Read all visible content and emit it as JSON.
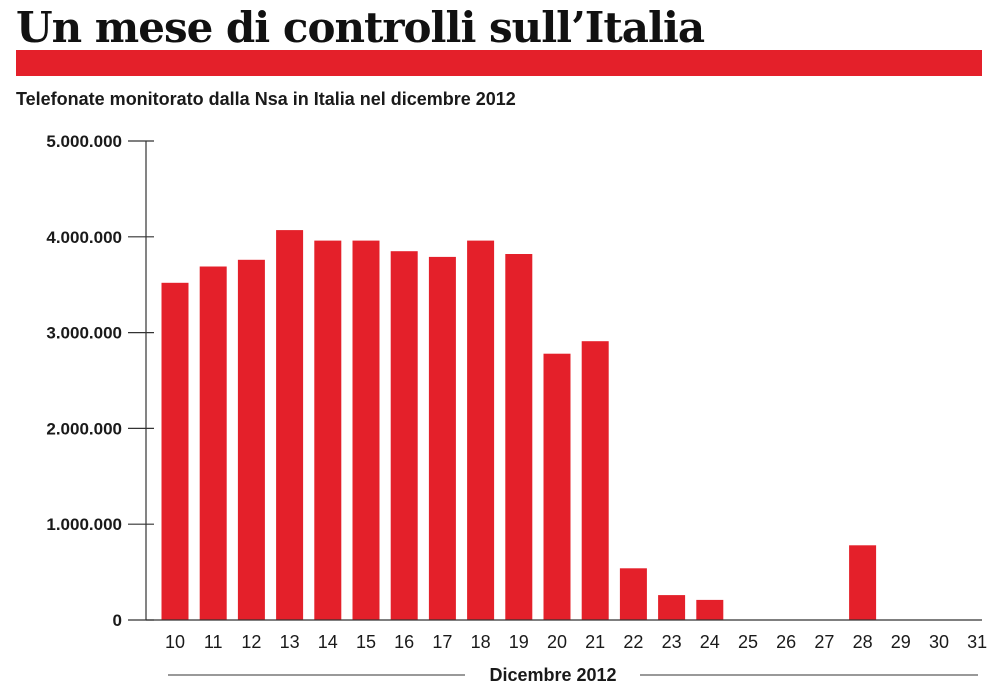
{
  "header": {
    "title": "Un mese di controlli sull’Italia",
    "subtitle": "Telefonate monitorato dalla Nsa in Italia nel dicembre 2012"
  },
  "colors": {
    "accent": "#e4202a",
    "text": "#1a1a1a",
    "axis": "#333333"
  },
  "chart_data": {
    "type": "bar",
    "title": "Un mese di controlli sull’Italia",
    "subtitle": "Telefonate monitorato dalla Nsa in Italia nel dicembre 2012",
    "xlabel": "Dicembre 2012",
    "ylabel": "",
    "categories": [
      "10",
      "11",
      "12",
      "13",
      "14",
      "15",
      "16",
      "17",
      "18",
      "19",
      "20",
      "21",
      "22",
      "23",
      "24",
      "25",
      "26",
      "27",
      "28",
      "29",
      "30",
      "31"
    ],
    "values": [
      3520000,
      3690000,
      3760000,
      4070000,
      3960000,
      3960000,
      3850000,
      3790000,
      3960000,
      3820000,
      2780000,
      2910000,
      540000,
      260000,
      210000,
      0,
      0,
      0,
      780000,
      0,
      0,
      0
    ],
    "ylim": [
      0,
      5000000
    ],
    "yticks": [
      0,
      1000000,
      2000000,
      3000000,
      4000000,
      5000000
    ],
    "ytick_labels": [
      "0",
      "1.000.000",
      "2.000.000",
      "3.000.000",
      "4.000.000",
      "5.000.000"
    ],
    "grid": false,
    "legend": "none"
  }
}
